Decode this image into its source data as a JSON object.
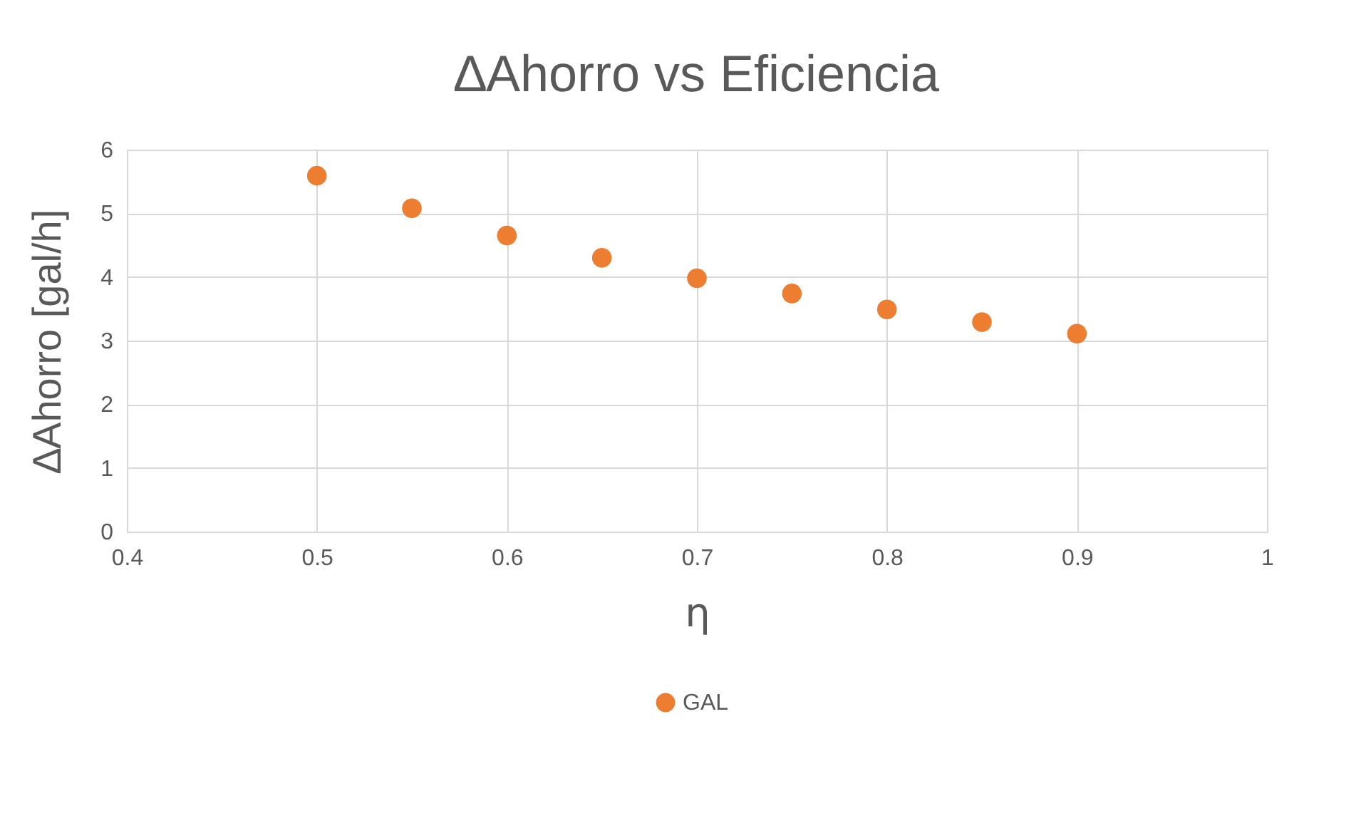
{
  "chart_data": {
    "type": "scatter",
    "title": "∆Ahorro vs Eficiencia",
    "xlabel": "η",
    "ylabel": "∆Ahorro [gal/h]",
    "x": [
      0.5,
      0.55,
      0.6,
      0.65,
      0.7,
      0.75,
      0.8,
      0.85,
      0.9
    ],
    "series": [
      {
        "name": "GAL",
        "color": "#ed7d31",
        "values": [
          5.59,
          5.08,
          4.65,
          4.3,
          3.98,
          3.74,
          3.49,
          3.29,
          3.11
        ]
      }
    ],
    "xlim": [
      0.4,
      1
    ],
    "xticks": [
      0.4,
      0.5,
      0.6,
      0.7,
      0.8,
      0.9,
      1
    ],
    "ylim": [
      0,
      6
    ],
    "yticks": [
      0,
      1,
      2,
      3,
      4,
      5,
      6
    ],
    "grid": true,
    "legend": "bottom",
    "marker": "circle"
  }
}
